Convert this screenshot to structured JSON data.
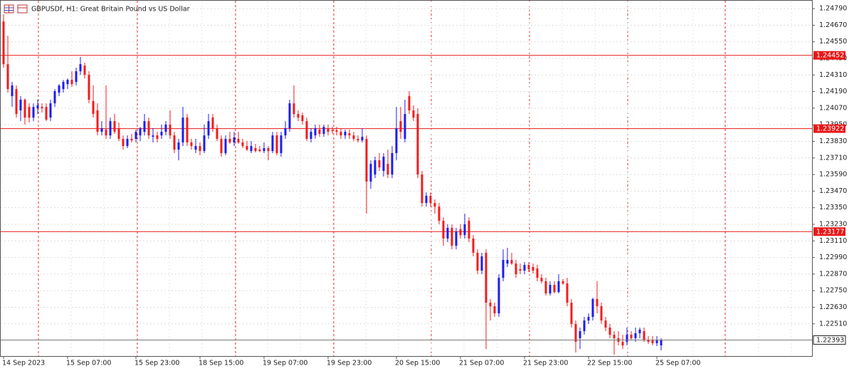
{
  "chart_data": {
    "type": "candlestick",
    "title": "GBPUSDf, H1:  Great Britain Pound vs US Dollar",
    "categories": [
      "14 Sep 2023",
      null,
      null,
      null,
      null,
      null,
      null,
      null,
      null,
      null,
      null,
      null,
      null,
      null,
      null,
      "15 Sep 07:00",
      null,
      null,
      null,
      null,
      null,
      null,
      null,
      null,
      null,
      null,
      null,
      null,
      null,
      null,
      null,
      "15 Sep 23:00",
      null,
      null,
      null,
      null,
      null,
      null,
      null,
      null,
      null,
      null,
      null,
      null,
      null,
      null,
      "18 Sep 15:00",
      null,
      null,
      null,
      null,
      null,
      null,
      null,
      null,
      null,
      null,
      null,
      null,
      null,
      null,
      "19 Sep 07:00",
      null,
      null,
      null,
      null,
      null,
      null,
      null,
      null,
      null,
      null,
      null,
      null,
      null,
      null,
      "19 Sep 23:00",
      null,
      null,
      null,
      null,
      null,
      null,
      null,
      null,
      null,
      null,
      null,
      null,
      null,
      null,
      null,
      "20 Sep 15:00",
      null,
      null,
      null,
      null,
      null,
      null,
      null,
      null,
      null,
      null,
      null,
      null,
      null,
      null,
      "21 Sep 07:00",
      null,
      null,
      null,
      null,
      null,
      null,
      null,
      null,
      null,
      null,
      null,
      null,
      null,
      null,
      "21 Sep 23:00",
      null,
      null,
      null,
      null,
      null,
      null,
      null,
      null,
      null,
      null,
      null,
      null,
      null,
      null,
      "22 Sep 15:00",
      null,
      null,
      null,
      null,
      null,
      null,
      null,
      null,
      null,
      null,
      null,
      null,
      null,
      null,
      null,
      "25 Sep 07:00",
      null
    ],
    "open": [
      1.24697,
      1.24388,
      1.24157,
      1.24208,
      1.24054,
      1.24131,
      1.24079,
      1.24002,
      1.24069,
      1.24079,
      1.24079,
      1.24002,
      1.24105,
      1.24182,
      1.24208,
      1.24244,
      1.24275,
      1.2426,
      1.24337,
      1.24378,
      1.24311,
      1.24121,
      1.24054,
      1.23899,
      1.23915,
      1.23873,
      1.23976,
      1.23925,
      1.23848,
      1.23796,
      1.23848,
      1.23848,
      1.23873,
      1.23899,
      1.23976,
      1.23863,
      1.23873,
      1.23873,
      1.23899,
      1.23951,
      1.23873,
      1.2377,
      1.23822,
      1.24002,
      1.23822,
      1.2377,
      1.23796,
      1.2376,
      1.23873,
      1.24002,
      1.23925,
      1.23848,
      1.23745,
      1.23848,
      1.23822,
      1.23848,
      1.23822,
      1.23796,
      1.2376,
      1.23781,
      1.2377,
      1.2376,
      1.23781,
      1.2376,
      1.23873,
      1.23745,
      1.23873,
      1.23925,
      1.24105,
      1.24028,
      1.24018,
      1.23976,
      1.23848,
      1.23873,
      1.23915,
      1.23884,
      1.23925,
      1.2391,
      1.2391,
      1.23899,
      1.23873,
      1.23889,
      1.23873,
      1.23848,
      1.23837,
      1.23848,
      1.23539,
      1.2359,
      1.23693,
      1.23616,
      1.23667,
      1.2359,
      1.23745,
      1.23976,
      1.23848,
      1.24157,
      1.24054,
      1.24028,
      1.2359,
      1.23384,
      1.23436,
      1.23384,
      1.23358,
      1.23255,
      1.23127,
      1.23204,
      1.23075,
      1.23194,
      1.23152,
      1.23255,
      1.23127,
      1.23024,
      1.22895,
      1.23024,
      1.22663,
      1.22637,
      1.22586,
      1.22843,
      1.22946,
      1.22972,
      1.22946,
      1.22905,
      1.22895,
      1.22936,
      1.22921,
      1.2291,
      1.22843,
      1.22818,
      1.2273,
      1.22792,
      1.2274,
      1.22818,
      1.22802,
      1.22663,
      1.22509,
      1.22406,
      1.22457,
      1.22534,
      1.2256,
      1.22689,
      1.22637,
      1.22534,
      1.22483,
      1.22431,
      1.22406,
      1.2238,
      1.2238,
      1.22431,
      1.22406,
      1.22442,
      1.22457,
      1.22395,
      1.2239,
      1.2237,
      1.22354
    ],
    "high": [
      1.24749,
      1.24594,
      1.2426,
      1.24234,
      1.24157,
      1.24141,
      1.24105,
      1.24105,
      1.24131,
      1.24105,
      1.24105,
      1.24131,
      1.24208,
      1.24244,
      1.24275,
      1.24285,
      1.24337,
      1.24363,
      1.2444,
      1.24399,
      1.24337,
      1.24234,
      1.24105,
      1.23976,
      1.24234,
      1.24002,
      1.24028,
      1.23966,
      1.23873,
      1.23873,
      1.23884,
      1.23915,
      1.23935,
      1.24028,
      1.24002,
      1.23925,
      1.23899,
      1.23951,
      1.23976,
      1.24054,
      1.23899,
      1.23848,
      1.24079,
      1.24028,
      1.23848,
      1.23848,
      1.23822,
      1.23951,
      1.24028,
      1.24028,
      1.23951,
      1.23873,
      1.23873,
      1.23899,
      1.23899,
      1.23899,
      1.23848,
      1.23832,
      1.23832,
      1.23812,
      1.23796,
      1.23822,
      1.23796,
      1.23899,
      1.23899,
      1.23899,
      1.23976,
      1.24131,
      1.24234,
      1.24054,
      1.24038,
      1.24002,
      1.23925,
      1.23951,
      1.23951,
      1.23951,
      1.23951,
      1.23935,
      1.23935,
      1.23925,
      1.23915,
      1.23915,
      1.23899,
      1.23873,
      1.23925,
      1.23873,
      1.23693,
      1.23719,
      1.23745,
      1.23745,
      1.2377,
      1.23796,
      1.24079,
      1.24079,
      1.24131,
      1.24193,
      1.2409,
      1.24069,
      1.23616,
      1.23461,
      1.23461,
      1.2341,
      1.23384,
      1.23281,
      1.2323,
      1.2323,
      1.23204,
      1.2323,
      1.23307,
      1.23281,
      1.23152,
      1.23049,
      1.23024,
      1.23049,
      1.22689,
      1.22663,
      1.22869,
      1.23049,
      1.2306,
      1.23024,
      1.22972,
      1.22946,
      1.22957,
      1.22957,
      1.22946,
      1.22936,
      1.22869,
      1.22843,
      1.22818,
      1.22818,
      1.22869,
      1.22833,
      1.22843,
      1.22689,
      1.22534,
      1.22483,
      1.2256,
      1.22586,
      1.22699,
      1.22818,
      1.22663,
      1.2256,
      1.22509,
      1.22457,
      1.22457,
      1.22431,
      1.22483,
      1.22457,
      1.22483,
      1.22483,
      1.22483,
      1.22421,
      1.22421,
      1.22421,
      1.22406
    ],
    "low": [
      1.24363,
      1.24182,
      1.24079,
      1.24002,
      1.23976,
      1.23951,
      1.23966,
      1.23976,
      1.24028,
      1.24038,
      1.23976,
      1.23976,
      1.24079,
      1.24157,
      1.24182,
      1.24208,
      1.24224,
      1.24234,
      1.24311,
      1.24285,
      1.24105,
      1.24002,
      1.23873,
      1.23873,
      1.23848,
      1.23848,
      1.23884,
      1.23832,
      1.2377,
      1.23781,
      1.23822,
      1.23822,
      1.23832,
      1.23873,
      1.23848,
      1.23822,
      1.23822,
      1.23848,
      1.23873,
      1.23848,
      1.23745,
      1.23693,
      1.23796,
      1.23796,
      1.2377,
      1.23745,
      1.23729,
      1.23745,
      1.23848,
      1.23899,
      1.23832,
      1.23719,
      1.23729,
      1.23812,
      1.23796,
      1.23812,
      1.23781,
      1.2376,
      1.23745,
      1.2375,
      1.2375,
      1.23745,
      1.23693,
      1.23745,
      1.23729,
      1.23719,
      1.23848,
      1.23899,
      1.24002,
      1.23976,
      1.23951,
      1.23832,
      1.23822,
      1.23848,
      1.23863,
      1.23863,
      1.23873,
      1.23884,
      1.23873,
      1.23848,
      1.23848,
      1.23848,
      1.23832,
      1.23822,
      1.23822,
      1.23307,
      1.23487,
      1.23564,
      1.23616,
      1.23575,
      1.23564,
      1.23564,
      1.23693,
      1.23848,
      1.23822,
      1.24028,
      1.23976,
      1.23564,
      1.23358,
      1.23358,
      1.23358,
      1.23307,
      1.2323,
      1.23075,
      1.23101,
      1.23049,
      1.23049,
      1.23127,
      1.23127,
      1.23101,
      1.22998,
      1.22869,
      1.22869,
      1.22328,
      1.22534,
      1.2256,
      1.2256,
      1.22818,
      1.22921,
      1.22936,
      1.22843,
      1.22869,
      1.22869,
      1.22885,
      1.22874,
      1.22818,
      1.22802,
      1.22715,
      1.22715,
      1.2273,
      1.2273,
      1.22792,
      1.22637,
      1.22483,
      1.22303,
      1.22328,
      1.22431,
      1.22509,
      1.22534,
      1.22586,
      1.22509,
      1.22457,
      1.22406,
      1.22287,
      1.22354,
      1.22328,
      1.22354,
      1.2239,
      1.2238,
      1.22406,
      1.2238,
      1.22365,
      1.22354,
      1.22349,
      1.22318
    ],
    "close": [
      1.24388,
      1.24208,
      1.24234,
      1.24028,
      1.24131,
      1.24002,
      1.24002,
      1.24079,
      1.2409,
      1.24069,
      1.23987,
      1.24105,
      1.24193,
      1.24234,
      1.2426,
      1.24275,
      1.24244,
      1.24337,
      1.24388,
      1.24311,
      1.24131,
      1.24028,
      1.23899,
      1.23925,
      1.23873,
      1.23976,
      1.23899,
      1.23848,
      1.23796,
      1.23848,
      1.23837,
      1.23899,
      1.23925,
      1.23976,
      1.23873,
      1.23873,
      1.23848,
      1.23899,
      1.23951,
      1.23873,
      1.2377,
      1.23822,
      1.24002,
      1.23822,
      1.23796,
      1.23796,
      1.2376,
      1.23873,
      1.23976,
      1.23925,
      1.23848,
      1.23745,
      1.23848,
      1.23822,
      1.23858,
      1.23822,
      1.23796,
      1.2377,
      1.23796,
      1.2376,
      1.2376,
      1.23781,
      1.2376,
      1.23873,
      1.23745,
      1.23873,
      1.23925,
      1.24105,
      1.24028,
      1.24002,
      1.23976,
      1.23848,
      1.23899,
      1.23925,
      1.23884,
      1.23935,
      1.23899,
      1.23904,
      1.23899,
      1.23873,
      1.23899,
      1.23873,
      1.23848,
      1.23837,
      1.23863,
      1.23539,
      1.23667,
      1.23693,
      1.23642,
      1.23719,
      1.2359,
      1.23745,
      1.23925,
      1.23899,
      1.24028,
      1.24054,
      1.24002,
      1.2359,
      1.23384,
      1.23436,
      1.23384,
      1.23358,
      1.23255,
      1.23127,
      1.23204,
      1.23075,
      1.23178,
      1.23152,
      1.2323,
      1.23127,
      1.23024,
      1.22895,
      1.22998,
      1.22663,
      1.22637,
      1.22586,
      1.22843,
      1.22972,
      1.22972,
      1.22946,
      1.22869,
      1.22895,
      1.22936,
      1.22905,
      1.22895,
      1.22843,
      1.22818,
      1.2273,
      1.22792,
      1.2274,
      1.22818,
      1.22802,
      1.22663,
      1.22509,
      1.2238,
      1.22457,
      1.22534,
      1.2256,
      1.22689,
      1.22637,
      1.22534,
      1.22483,
      1.22431,
      1.22406,
      1.2238,
      1.22354,
      1.22431,
      1.22406,
      1.22442,
      1.22468,
      1.2239,
      1.2238,
      1.2237,
      1.2239,
      1.22393
    ],
    "up_color": "#1c1cf0",
    "down_color": "#f01c1c",
    "ylim": [
      1.22277,
      1.24842
    ],
    "yticks": [
      {
        "value": 1.2479,
        "label": "1.24790"
      },
      {
        "value": 1.2467,
        "label": "1.24670"
      },
      {
        "value": 1.2455,
        "label": "1.24550"
      },
      {
        "value": 1.2443,
        "label": "1.24430"
      },
      {
        "value": 1.2431,
        "label": "1.24310"
      },
      {
        "value": 1.2419,
        "label": "1.24190"
      },
      {
        "value": 1.2407,
        "label": "1.24070"
      },
      {
        "value": 1.2395,
        "label": "1.23950"
      },
      {
        "value": 1.2383,
        "label": "1.23830"
      },
      {
        "value": 1.2371,
        "label": "1.23710"
      },
      {
        "value": 1.2359,
        "label": "1.23590"
      },
      {
        "value": 1.2347,
        "label": "1.23470"
      },
      {
        "value": 1.2335,
        "label": "1.23350"
      },
      {
        "value": 1.2323,
        "label": "1.23230"
      },
      {
        "value": 1.2311,
        "label": "1.23110"
      },
      {
        "value": 1.2299,
        "label": "1.22990"
      },
      {
        "value": 1.2287,
        "label": "1.22870"
      },
      {
        "value": 1.2275,
        "label": "1.22750"
      },
      {
        "value": 1.2263,
        "label": "1.22630"
      },
      {
        "value": 1.2251,
        "label": "1.22510"
      }
    ],
    "grid": true,
    "levels": [
      {
        "value": 1.24452,
        "color": "#e81818"
      },
      {
        "value": 1.23922,
        "color": "#e81818"
      },
      {
        "value": 1.23177,
        "color": "#e81818"
      }
    ],
    "last_price": 1.22393
  }
}
